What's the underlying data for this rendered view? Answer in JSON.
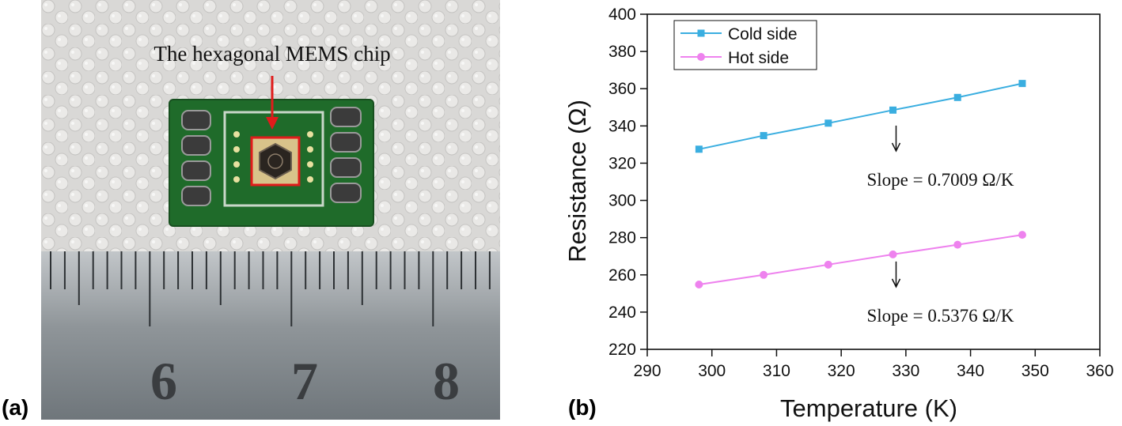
{
  "panels": {
    "a_label": "(a)",
    "b_label": "(b)"
  },
  "photo": {
    "annotation": "The hexagonal MEMS chip",
    "ruler_numbers": [
      "6",
      "7",
      "8"
    ],
    "colors": {
      "board": "#1f6b2a",
      "highlight": "#e01b1b",
      "ruler": "#8a9094"
    }
  },
  "chart_data": {
    "type": "line",
    "xlabel": "Temperature (K)",
    "ylabel": "Resistance (Ω)",
    "xlim": [
      290,
      360
    ],
    "ylim": [
      220,
      400
    ],
    "xticks": [
      290,
      300,
      310,
      320,
      330,
      340,
      350,
      360
    ],
    "yticks": [
      220,
      240,
      260,
      280,
      300,
      320,
      340,
      360,
      380,
      400
    ],
    "grid": false,
    "legend_position": "top-left",
    "series": [
      {
        "name": "Cold side",
        "marker": "square",
        "color": "#3aaee0",
        "x": [
          298,
          308,
          318,
          328,
          338,
          348
        ],
        "y": [
          327.5,
          334.8,
          341.5,
          348.5,
          355.3,
          362.8
        ]
      },
      {
        "name": "Hot side",
        "marker": "circle",
        "color": "#ee82ee",
        "x": [
          298,
          308,
          318,
          328,
          338,
          348
        ],
        "y": [
          254.8,
          260.0,
          265.5,
          271.0,
          276.2,
          281.5
        ]
      }
    ],
    "annotations": [
      {
        "text": "Slope = 0.7009 Ω/K",
        "x": 322,
        "y": 313
      },
      {
        "text": "Slope = 0.5376 Ω/K",
        "x": 322,
        "y": 240
      }
    ]
  }
}
